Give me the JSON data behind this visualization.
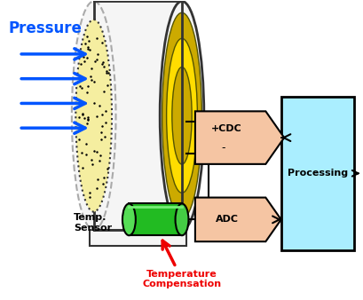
{
  "bg_color": "#ffffff",
  "pressure_text": "Pressure",
  "pressure_color": "#0055ff",
  "arrow_color": "#0055ff",
  "trap_color": "#f5c5a3",
  "processing_color": "#aaeeff",
  "outline_color": "#000000",
  "cdc_label_plus": "+CDC",
  "cdc_label_minus": "-",
  "adc_label": "ADC",
  "processing_label": "Processing",
  "temp_sensor_label": "Temp.\nSensor",
  "temp_comp_label": "Temperature\nCompensation",
  "temp_comp_color": "#ee0000",
  "temp_arrow_color": "#ee0000",
  "sensor_cyl_color": "#22bb22",
  "disk_body_color": "#f5f5f5",
  "disk_ring1_color": "#ccaa00",
  "disk_ring2_color": "#ffdd00",
  "disk_ring3_color": "#ccaa00",
  "membrane_color": "#f5eea0"
}
